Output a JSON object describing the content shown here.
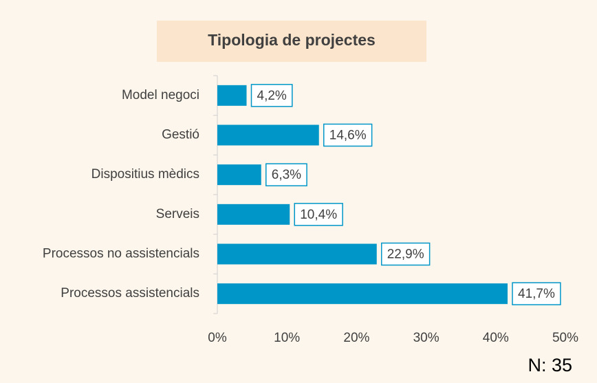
{
  "chart_data": {
    "type": "bar",
    "orientation": "horizontal",
    "title": "Tipologia de projectes",
    "categories": [
      "Model negoci",
      "Gestió",
      "Dispositius mèdics",
      "Serveis",
      "Processos no assistencials",
      "Processos assistencials"
    ],
    "values": [
      4.2,
      14.6,
      6.3,
      10.4,
      22.9,
      41.7
    ],
    "value_labels": [
      "4,2%",
      "14,6%",
      "6,3%",
      "10,4%",
      "22,9%",
      "41,7%"
    ],
    "color": "#0096c8",
    "xlim": [
      0,
      50
    ],
    "xticks": [
      {
        "value": 0,
        "label": "0%"
      },
      {
        "value": 10,
        "label": "10%"
      },
      {
        "value": 20,
        "label": "20%"
      },
      {
        "value": 30,
        "label": "30%"
      },
      {
        "value": 40,
        "label": "40%"
      },
      {
        "value": 50,
        "label": "50%"
      }
    ],
    "annotation": "N: 35"
  }
}
